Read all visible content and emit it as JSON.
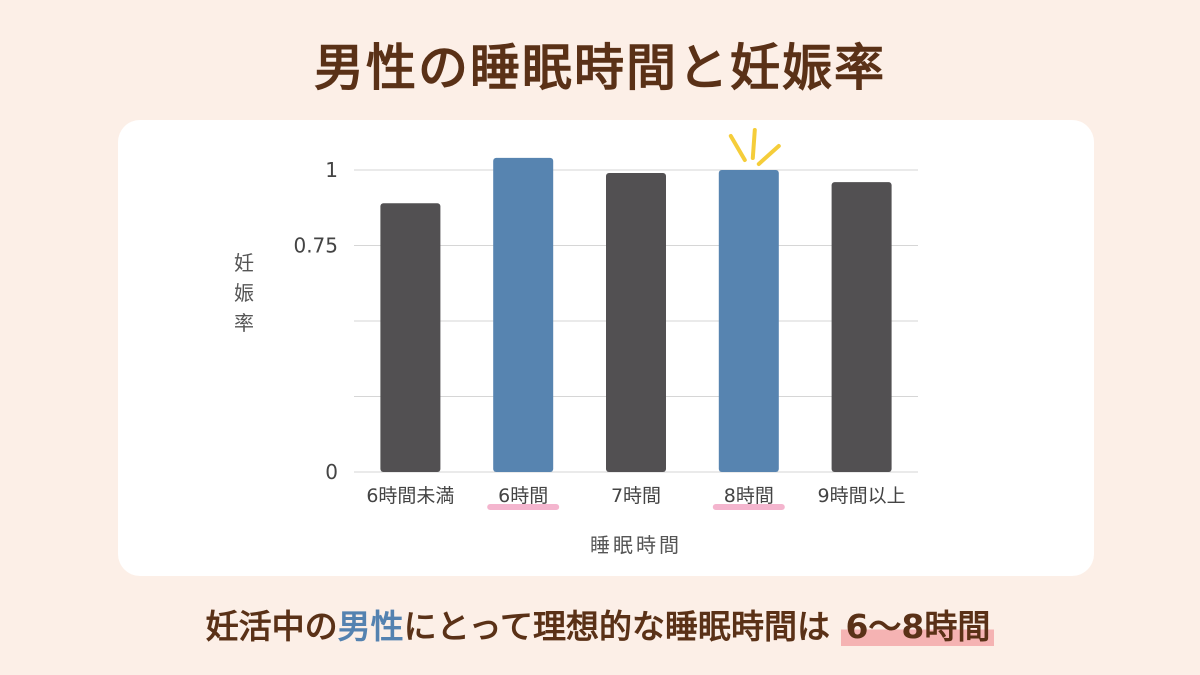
{
  "title": "男性の睡眠時間と妊娠率",
  "chart_data": {
    "type": "bar",
    "categories": [
      "6時間未満",
      "6時間",
      "7時間",
      "8時間",
      "9時間以上"
    ],
    "values": [
      0.89,
      1.04,
      0.99,
      1.0,
      0.96
    ],
    "highlighted": [
      false,
      true,
      false,
      true,
      false
    ],
    "ylim": [
      0,
      1
    ],
    "yticks": [
      0,
      0.25,
      0.5,
      0.75,
      1
    ],
    "ytick_labels": [
      "0",
      "",
      "",
      "0.75",
      "1"
    ],
    "xlabel": "睡眠時間",
    "ylabel": "妊娠率",
    "grid": true,
    "colors": {
      "bar": "#525052",
      "highlight": "#5784b0",
      "underline": "#f2a8c6",
      "sparkle": "#f5cd3a"
    }
  },
  "footer": {
    "part1": "妊活中の",
    "part2": "男性",
    "part3": "にとって理想的な睡眠時間は",
    "part4": "6〜8時間"
  }
}
